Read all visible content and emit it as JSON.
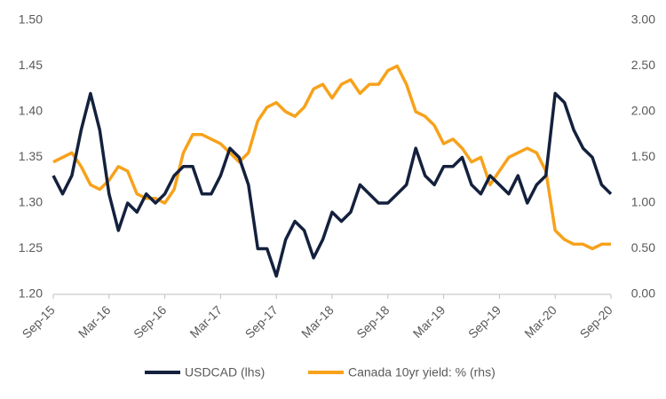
{
  "chart_data": {
    "type": "line",
    "categories": [
      "Sep-15",
      null,
      null,
      null,
      null,
      null,
      "Mar-16",
      null,
      null,
      null,
      null,
      null,
      "Sep-16",
      null,
      null,
      null,
      null,
      null,
      "Mar-17",
      null,
      null,
      null,
      null,
      null,
      "Sep-17",
      null,
      null,
      null,
      null,
      null,
      "Mar-18",
      null,
      null,
      null,
      null,
      null,
      "Sep-18",
      null,
      null,
      null,
      null,
      null,
      "Mar-19",
      null,
      null,
      null,
      null,
      null,
      "Sep-19",
      null,
      null,
      null,
      null,
      null,
      "Mar-20",
      null,
      null,
      null,
      null,
      null,
      "Sep-20"
    ],
    "series": [
      {
        "name": "USDCAD (lhs)",
        "color": "#14213d",
        "axis": "y",
        "values": [
          1.33,
          1.31,
          1.33,
          1.38,
          1.42,
          1.38,
          1.31,
          1.27,
          1.3,
          1.29,
          1.31,
          1.3,
          1.31,
          1.33,
          1.34,
          1.34,
          1.31,
          1.31,
          1.33,
          1.36,
          1.35,
          1.32,
          1.25,
          1.25,
          1.22,
          1.26,
          1.28,
          1.27,
          1.24,
          1.26,
          1.29,
          1.28,
          1.29,
          1.32,
          1.31,
          1.3,
          1.3,
          1.31,
          1.32,
          1.36,
          1.33,
          1.32,
          1.34,
          1.34,
          1.35,
          1.32,
          1.31,
          1.33,
          1.32,
          1.31,
          1.33,
          1.3,
          1.32,
          1.33,
          1.42,
          1.41,
          1.38,
          1.36,
          1.35,
          1.32,
          1.31
        ]
      },
      {
        "name": "Canada 10yr yield: % (rhs)",
        "color": "#f7a21b",
        "axis": "y2",
        "values": [
          1.45,
          1.5,
          1.55,
          1.4,
          1.2,
          1.15,
          1.25,
          1.4,
          1.35,
          1.1,
          1.05,
          1.05,
          1.0,
          1.15,
          1.55,
          1.75,
          1.75,
          1.7,
          1.65,
          1.55,
          1.45,
          1.55,
          1.9,
          2.05,
          2.1,
          2.0,
          1.95,
          2.05,
          2.25,
          2.3,
          2.15,
          2.3,
          2.35,
          2.2,
          2.3,
          2.3,
          2.45,
          2.5,
          2.3,
          2.0,
          1.95,
          1.85,
          1.65,
          1.7,
          1.6,
          1.45,
          1.5,
          1.2,
          1.35,
          1.5,
          1.55,
          1.6,
          1.55,
          1.35,
          0.7,
          0.6,
          0.55,
          0.55,
          0.5,
          0.55,
          0.55
        ]
      }
    ],
    "ylim": [
      1.2,
      1.5
    ],
    "yticks": [
      {
        "value": 1.2,
        "label": "1.20"
      },
      {
        "value": 1.25,
        "label": "1.25"
      },
      {
        "value": 1.3,
        "label": "1.30"
      },
      {
        "value": 1.35,
        "label": "1.35"
      },
      {
        "value": 1.4,
        "label": "1.40"
      },
      {
        "value": 1.45,
        "label": "1.45"
      },
      {
        "value": 1.5,
        "label": "1.50"
      }
    ],
    "y2lim": [
      0,
      3
    ],
    "y2ticks": [
      {
        "value": 0,
        "label": "0.00"
      },
      {
        "value": 0.5,
        "label": "0.50"
      },
      {
        "value": 1,
        "label": "1.00"
      },
      {
        "value": 1.5,
        "label": "1.50"
      },
      {
        "value": 2,
        "label": "2.00"
      },
      {
        "value": 2.5,
        "label": "2.50"
      },
      {
        "value": 3,
        "label": "3.00"
      }
    ],
    "grid": false
  }
}
